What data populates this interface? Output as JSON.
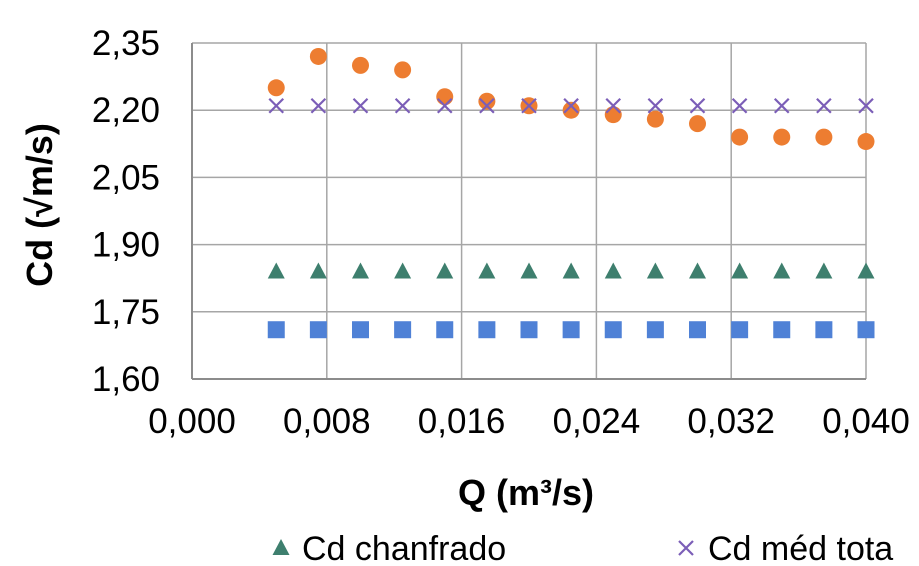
{
  "chart_data": {
    "type": "scatter",
    "title": "",
    "xlabel": "Q (m³/s)",
    "ylabel": "Cd (√m/s)",
    "xlim": [
      0.0,
      0.04
    ],
    "ylim": [
      1.6,
      2.35
    ],
    "x_ticks": [
      0.0,
      0.008,
      0.016,
      0.024,
      0.032,
      0.04
    ],
    "x_tick_labels": [
      "0,000",
      "0,008",
      "0,016",
      "0,024",
      "0,032",
      "0,040"
    ],
    "y_ticks": [
      1.6,
      1.75,
      1.9,
      2.05,
      2.2,
      2.35
    ],
    "y_tick_labels": [
      "1,60",
      "1,75",
      "1,90",
      "2,05",
      "2,20",
      "2,35"
    ],
    "grid": true,
    "legend_position": "bottom",
    "series": [
      {
        "marker": "circle",
        "color": "#ED7D31",
        "x": [
          0.005,
          0.0075,
          0.01,
          0.0125,
          0.015,
          0.0175,
          0.02,
          0.0225,
          0.025,
          0.0275,
          0.03,
          0.0325,
          0.035,
          0.0375,
          0.04
        ],
        "y": [
          2.25,
          2.32,
          2.3,
          2.29,
          2.23,
          2.22,
          2.21,
          2.2,
          2.19,
          2.18,
          2.17,
          2.14,
          2.14,
          2.14,
          2.13
        ]
      },
      {
        "name": "Cd méd tota",
        "marker": "x",
        "color": "#7B5EB7",
        "x": [
          0.005,
          0.0075,
          0.01,
          0.0125,
          0.015,
          0.0175,
          0.02,
          0.0225,
          0.025,
          0.0275,
          0.03,
          0.0325,
          0.035,
          0.0375,
          0.04
        ],
        "y": [
          2.21,
          2.21,
          2.21,
          2.21,
          2.21,
          2.21,
          2.21,
          2.21,
          2.21,
          2.21,
          2.21,
          2.21,
          2.21,
          2.21,
          2.21
        ]
      },
      {
        "name": "Cd chanfrado",
        "marker": "triangle",
        "color": "#3E7F6E",
        "x": [
          0.005,
          0.0075,
          0.01,
          0.0125,
          0.015,
          0.0175,
          0.02,
          0.0225,
          0.025,
          0.0275,
          0.03,
          0.0325,
          0.035,
          0.0375,
          0.04
        ],
        "y": [
          1.84,
          1.84,
          1.84,
          1.84,
          1.84,
          1.84,
          1.84,
          1.84,
          1.84,
          1.84,
          1.84,
          1.84,
          1.84,
          1.84,
          1.84
        ]
      },
      {
        "marker": "square",
        "color": "#4F81D6",
        "x": [
          0.005,
          0.0075,
          0.01,
          0.0125,
          0.015,
          0.0175,
          0.02,
          0.0225,
          0.025,
          0.0275,
          0.03,
          0.0325,
          0.035,
          0.0375,
          0.04
        ],
        "y": [
          1.71,
          1.71,
          1.71,
          1.71,
          1.71,
          1.71,
          1.71,
          1.71,
          1.71,
          1.71,
          1.71,
          1.71,
          1.71,
          1.71,
          1.71
        ]
      }
    ],
    "legend": [
      {
        "label": "Cd chanfrado",
        "marker": "triangle",
        "color": "#3E7F6E"
      },
      {
        "label": "Cd méd tota",
        "marker": "x",
        "color": "#7B5EB7"
      }
    ]
  }
}
